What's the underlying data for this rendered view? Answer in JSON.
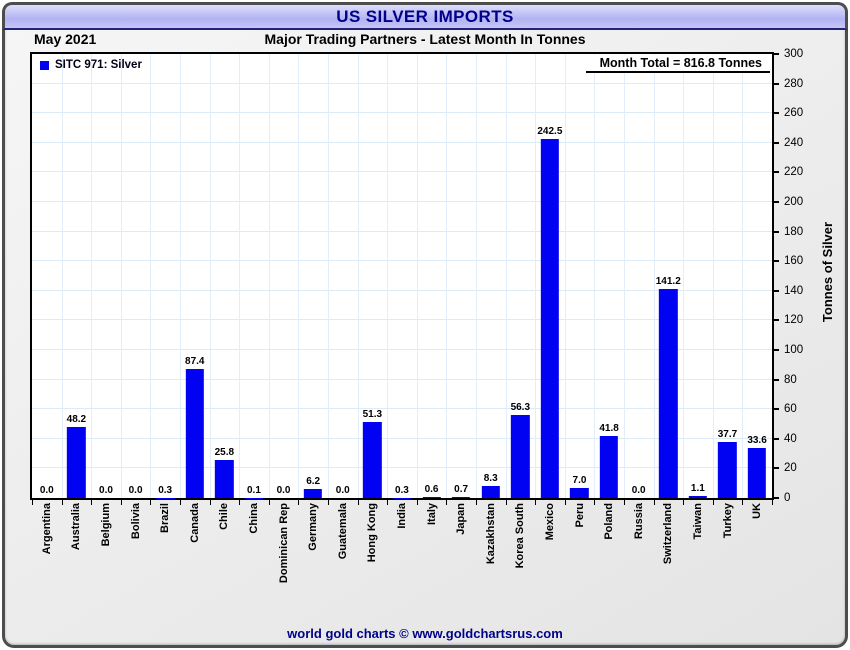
{
  "window": {
    "title": "US SILVER IMPORTS"
  },
  "header": {
    "date_label": "May 2021",
    "subtitle": "Major Trading Partners - Latest Month In Tonnes"
  },
  "legend": {
    "label": "SITC 971: Silver",
    "swatch_color": "#0202f2"
  },
  "annotation": {
    "month_total": "Month Total = 816.8 Tonnes"
  },
  "footer": {
    "credit": "world gold charts © www.goldchartsrus.com"
  },
  "colors": {
    "bar": "#0202f2",
    "grid": "#dcebf8",
    "title_navy": "#00008b",
    "header_gradient_top": "#dedefc",
    "header_gradient_bottom": "#b2b2f2",
    "frame_background": "#ececec"
  },
  "chart_data": {
    "type": "bar",
    "title": "US SILVER IMPORTS",
    "subtitle": "Major Trading Partners - Latest Month In Tonnes",
    "period": "May 2021",
    "series_name": "SITC 971: Silver",
    "categories": [
      "Argentina",
      "Australia",
      "Belgium",
      "Bolivia",
      "Brazil",
      "Canada",
      "Chile",
      "China",
      "Dominican Rep",
      "Germany",
      "Guatemala",
      "Hong Kong",
      "India",
      "Italy",
      "Japan",
      "Kazakhstan",
      "Korea South",
      "Mexico",
      "Peru",
      "Poland",
      "Russia",
      "Switzerland",
      "Taiwan",
      "Turkey",
      "UK"
    ],
    "values": [
      0.0,
      48.2,
      0.0,
      0.0,
      0.3,
      87.4,
      25.8,
      0.1,
      0.0,
      6.2,
      0.0,
      51.3,
      0.3,
      0.6,
      0.7,
      8.3,
      56.3,
      242.5,
      7.0,
      41.8,
      0.0,
      141.2,
      1.1,
      37.7,
      33.6
    ],
    "xlabel": "",
    "ylabel": "Tonnes of Silver",
    "ylim": [
      0,
      300
    ],
    "ytick_step": 20,
    "grid": true,
    "legend_position": "top-left",
    "month_total": 816.8,
    "bar_color": "#0202f2"
  }
}
